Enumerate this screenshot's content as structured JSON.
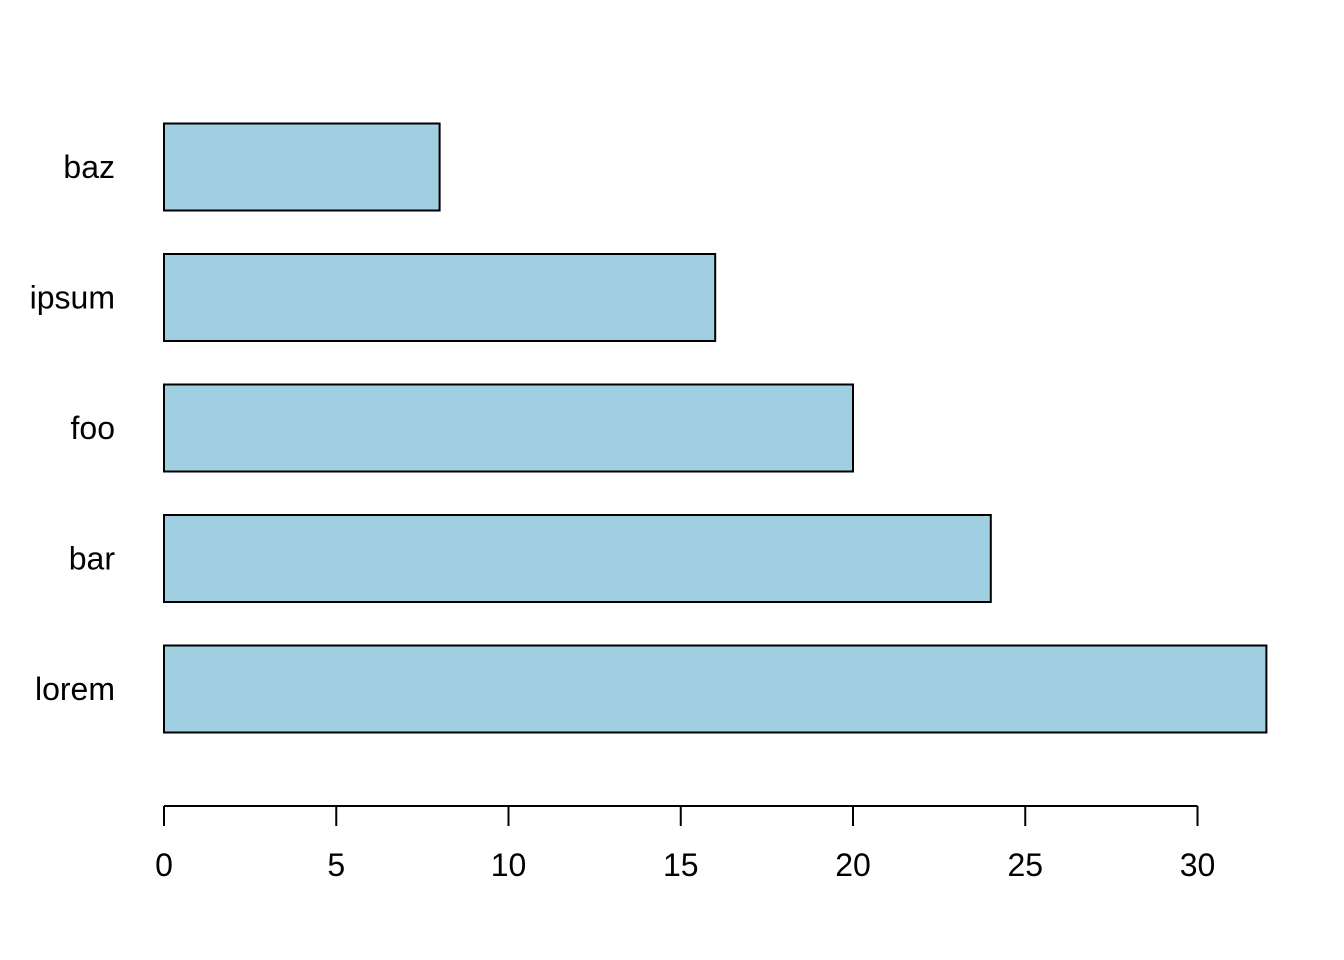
{
  "chart_data": {
    "type": "bar",
    "orientation": "horizontal",
    "categories": [
      "lorem",
      "bar",
      "foo",
      "ipsum",
      "baz"
    ],
    "values": [
      32,
      24,
      20,
      16,
      8
    ],
    "title": "",
    "xlabel": "",
    "ylabel": "",
    "xlim": [
      0,
      32
    ],
    "x_ticks": [
      0,
      5,
      10,
      15,
      20,
      25,
      30
    ],
    "x_tick_labels": [
      "0",
      "5",
      "10",
      "15",
      "20",
      "25",
      "30"
    ],
    "grid": false,
    "legend": "none",
    "bar_color": "#9fcfe0",
    "bar_edge_color": "#000000"
  }
}
